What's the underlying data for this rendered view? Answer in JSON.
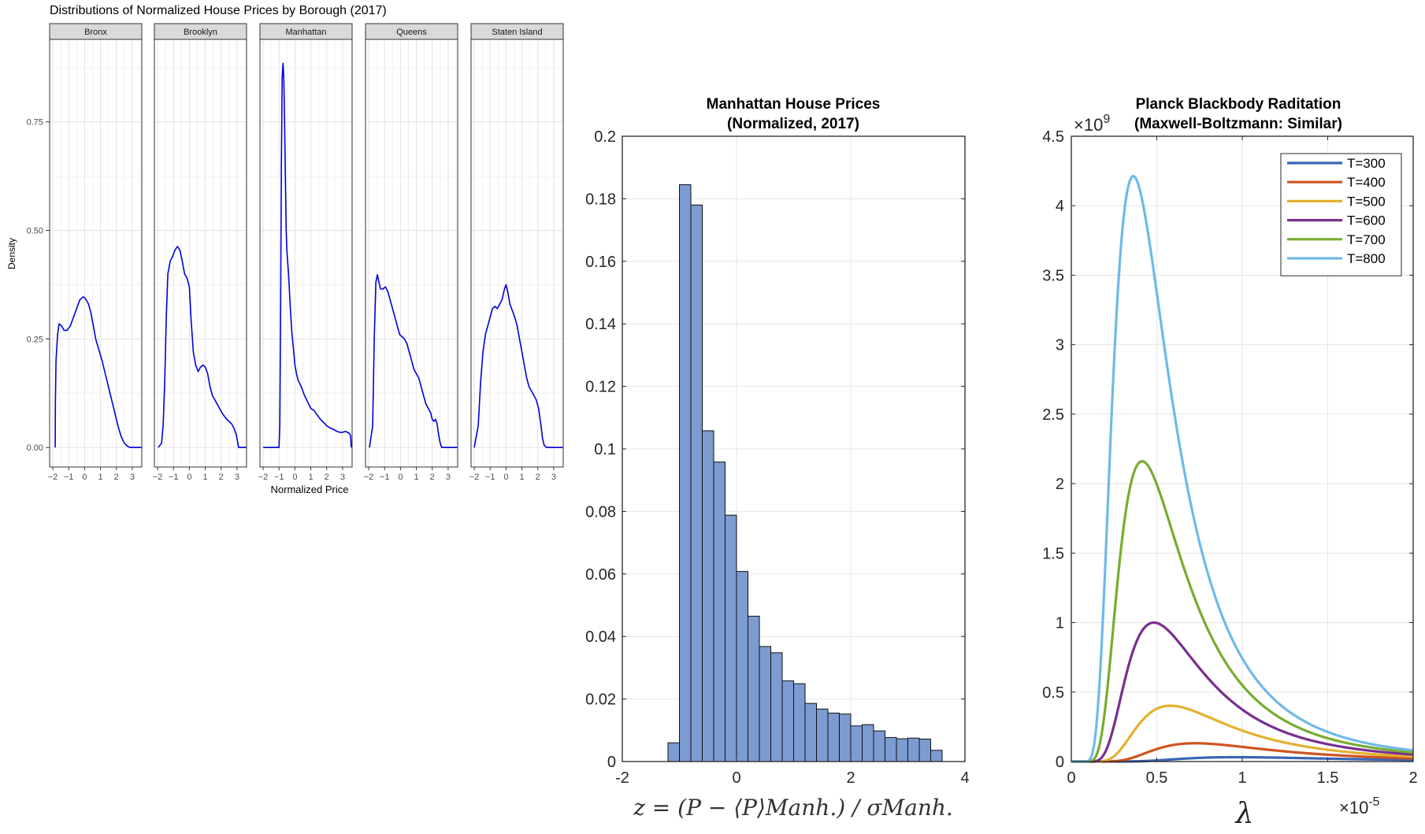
{
  "chart_data": [
    {
      "type": "line",
      "title": "Distributions of Normalized House Prices by Borough (2017)",
      "xlabel": "Normalized Price",
      "ylabel": "Density",
      "xlim": [
        -2.2,
        3.6
      ],
      "ylim": [
        -0.045,
        0.94
      ],
      "xticks": [
        -2,
        -1,
        0,
        1,
        2,
        3
      ],
      "xtick_labels": [
        "−2",
        "−1",
        "0",
        "1",
        "2",
        "3"
      ],
      "yticks": [
        0.0,
        0.25,
        0.5,
        0.75
      ],
      "ytick_labels": [
        "0.00",
        "0.25",
        "0.50",
        "0.75"
      ],
      "grid": true,
      "line_color": "#0000dd",
      "facets": [
        {
          "name": "Bronx",
          "x": [
            -1.85,
            -1.84,
            -1.8,
            -1.7,
            -1.6,
            -1.45,
            -1.3,
            -1.1,
            -0.9,
            -0.7,
            -0.5,
            -0.3,
            -0.1,
            0.0,
            0.1,
            0.25,
            0.4,
            0.55,
            0.7,
            0.9,
            1.1,
            1.3,
            1.5,
            1.7,
            1.9,
            2.1,
            2.3,
            2.5,
            2.7,
            2.8,
            2.85,
            3.6
          ],
          "y": [
            0.0,
            0.1,
            0.2,
            0.26,
            0.285,
            0.28,
            0.27,
            0.27,
            0.28,
            0.3,
            0.32,
            0.34,
            0.347,
            0.345,
            0.34,
            0.33,
            0.31,
            0.28,
            0.25,
            0.225,
            0.2,
            0.17,
            0.14,
            0.11,
            0.08,
            0.05,
            0.025,
            0.01,
            0.003,
            0.001,
            0.0,
            0.0
          ]
        },
        {
          "name": "Brooklyn",
          "x": [
            -1.95,
            -1.75,
            -1.65,
            -1.55,
            -1.45,
            -1.35,
            -1.2,
            -1.05,
            -0.9,
            -0.75,
            -0.6,
            -0.45,
            -0.3,
            -0.15,
            0.0,
            0.1,
            0.25,
            0.4,
            0.55,
            0.7,
            0.85,
            1.0,
            1.15,
            1.3,
            1.45,
            1.6,
            1.75,
            1.9,
            2.05,
            2.2,
            2.35,
            2.5,
            2.65,
            2.8,
            2.95,
            3.1,
            3.6
          ],
          "y": [
            0.0,
            0.01,
            0.05,
            0.15,
            0.3,
            0.4,
            0.43,
            0.44,
            0.455,
            0.463,
            0.455,
            0.43,
            0.4,
            0.39,
            0.37,
            0.3,
            0.22,
            0.19,
            0.175,
            0.185,
            0.19,
            0.185,
            0.17,
            0.14,
            0.12,
            0.11,
            0.1,
            0.09,
            0.08,
            0.072,
            0.065,
            0.06,
            0.055,
            0.045,
            0.03,
            0.0,
            0.0
          ]
        },
        {
          "name": "Manhattan",
          "x": [
            -2.0,
            -1.0,
            -0.95,
            -0.9,
            -0.85,
            -0.8,
            -0.75,
            -0.7,
            -0.65,
            -0.6,
            -0.55,
            -0.5,
            -0.4,
            -0.3,
            -0.2,
            -0.1,
            0.0,
            0.1,
            0.2,
            0.4,
            0.6,
            0.8,
            1.0,
            1.2,
            1.4,
            1.6,
            1.8,
            2.0,
            2.2,
            2.4,
            2.6,
            2.8,
            3.0,
            3.2,
            3.4,
            3.5,
            3.55
          ],
          "y": [
            0.0,
            0.0,
            0.05,
            0.3,
            0.65,
            0.85,
            0.885,
            0.85,
            0.75,
            0.62,
            0.5,
            0.45,
            0.4,
            0.33,
            0.27,
            0.23,
            0.19,
            0.17,
            0.155,
            0.14,
            0.12,
            0.105,
            0.09,
            0.085,
            0.075,
            0.065,
            0.058,
            0.05,
            0.045,
            0.042,
            0.038,
            0.035,
            0.035,
            0.037,
            0.033,
            0.028,
            0.0
          ]
        },
        {
          "name": "Queens",
          "x": [
            -1.95,
            -1.75,
            -1.65,
            -1.55,
            -1.45,
            -1.35,
            -1.25,
            -1.1,
            -0.95,
            -0.8,
            -0.65,
            -0.5,
            -0.35,
            -0.2,
            -0.05,
            0.1,
            0.25,
            0.4,
            0.55,
            0.7,
            0.85,
            1.0,
            1.15,
            1.3,
            1.45,
            1.6,
            1.75,
            1.9,
            2.0,
            2.1,
            2.2,
            2.3,
            2.4,
            2.5,
            2.6,
            3.6
          ],
          "y": [
            0.0,
            0.05,
            0.25,
            0.38,
            0.398,
            0.38,
            0.365,
            0.365,
            0.37,
            0.36,
            0.34,
            0.32,
            0.3,
            0.28,
            0.26,
            0.255,
            0.25,
            0.24,
            0.22,
            0.2,
            0.18,
            0.17,
            0.16,
            0.14,
            0.12,
            0.1,
            0.09,
            0.08,
            0.065,
            0.06,
            0.065,
            0.055,
            0.03,
            0.01,
            0.0,
            0.0
          ]
        },
        {
          "name": "Staten Island",
          "x": [
            -2.0,
            -1.75,
            -1.6,
            -1.45,
            -1.3,
            -1.15,
            -1.0,
            -0.85,
            -0.7,
            -0.55,
            -0.4,
            -0.25,
            -0.1,
            0.0,
            0.1,
            0.25,
            0.4,
            0.55,
            0.7,
            0.85,
            1.0,
            1.15,
            1.3,
            1.45,
            1.6,
            1.75,
            1.9,
            2.05,
            2.2,
            2.3,
            2.4,
            2.55,
            3.6
          ],
          "y": [
            0.0,
            0.05,
            0.15,
            0.22,
            0.26,
            0.28,
            0.3,
            0.32,
            0.325,
            0.32,
            0.33,
            0.34,
            0.365,
            0.375,
            0.36,
            0.33,
            0.315,
            0.3,
            0.28,
            0.25,
            0.22,
            0.19,
            0.16,
            0.14,
            0.13,
            0.12,
            0.11,
            0.09,
            0.05,
            0.02,
            0.005,
            0.0,
            0.0
          ]
        }
      ]
    },
    {
      "type": "bar",
      "title": "Manhattan House Prices",
      "subtitle": "(Normalized, 2017)",
      "xlabel": "z = (P − ⟨P⟩Manh.) / σManh.",
      "ylabel": "",
      "xlim": [
        -2,
        4
      ],
      "ylim": [
        0,
        0.2
      ],
      "xticks": [
        -2,
        0,
        2,
        4
      ],
      "xtick_labels": [
        "-2",
        "0",
        "2",
        "4"
      ],
      "yticks": [
        0,
        0.02,
        0.04,
        0.06,
        0.08,
        0.1,
        0.12,
        0.14,
        0.16,
        0.18,
        0.2
      ],
      "ytick_labels": [
        "0",
        "0.02",
        "0.04",
        "0.06",
        "0.08",
        "0.1",
        "0.12",
        "0.14",
        "0.16",
        "0.18",
        "0.2"
      ],
      "grid": true,
      "bar_color": "#7b9bd1",
      "bins": [
        [
          -1.2,
          -1.0
        ],
        [
          -1.0,
          -0.8
        ],
        [
          -0.8,
          -0.6
        ],
        [
          -0.6,
          -0.4
        ],
        [
          -0.4,
          -0.2
        ],
        [
          -0.2,
          0.0
        ],
        [
          0.0,
          0.2
        ],
        [
          0.2,
          0.4
        ],
        [
          0.4,
          0.6
        ],
        [
          0.6,
          0.8
        ],
        [
          0.8,
          1.0
        ],
        [
          1.0,
          1.2
        ],
        [
          1.2,
          1.4
        ],
        [
          1.4,
          1.6
        ],
        [
          1.6,
          1.8
        ],
        [
          1.8,
          2.0
        ],
        [
          2.0,
          2.2
        ],
        [
          2.2,
          2.4
        ],
        [
          2.4,
          2.6
        ],
        [
          2.6,
          2.8
        ],
        [
          2.8,
          3.0
        ],
        [
          3.0,
          3.2
        ],
        [
          3.2,
          3.4
        ],
        [
          3.4,
          3.6
        ]
      ],
      "values": [
        0.006,
        0.1845,
        0.178,
        0.1058,
        0.0958,
        0.0788,
        0.0608,
        0.0465,
        0.0368,
        0.0348,
        0.0258,
        0.0249,
        0.0186,
        0.0168,
        0.0155,
        0.0152,
        0.0114,
        0.0118,
        0.0098,
        0.0077,
        0.0073,
        0.0075,
        0.0072,
        0.0036
      ]
    },
    {
      "type": "line",
      "title": "Planck Blackbody Raditation",
      "subtitle": "(Maxwell-Boltzmann: Similar)",
      "xlabel": "λ",
      "ylabel": "",
      "x_exponent": "×10",
      "x_exponent_power": "-5",
      "y_exponent": "×10",
      "y_exponent_power": "9",
      "xlim": [
        0,
        2
      ],
      "ylim": [
        0,
        4.5
      ],
      "xticks": [
        0,
        0.5,
        1,
        1.5,
        2
      ],
      "xtick_labels": [
        "0",
        "0.5",
        "1",
        "1.5",
        "2"
      ],
      "yticks": [
        0,
        0.5,
        1,
        1.5,
        2,
        2.5,
        3,
        3.5,
        4,
        4.5
      ],
      "ytick_labels": [
        "0",
        "0.5",
        "1",
        "1.5",
        "2",
        "2.5",
        "3",
        "3.5",
        "4",
        "4.5"
      ],
      "grid": true,
      "legend_position": "top-right",
      "physics": {
        "h": 6.626e-34,
        "c": 300000000.0,
        "k": 1.381e-23,
        "x_scale": 1e-05,
        "y_scale": 1000000000.0
      },
      "series": [
        {
          "name": "T=300",
          "temperature": 300,
          "color": "#3a66b3"
        },
        {
          "name": "T=400",
          "temperature": 400,
          "color": "#cf5420"
        },
        {
          "name": "T=500",
          "temperature": 500,
          "color": "#e4b030"
        },
        {
          "name": "T=600",
          "temperature": 600,
          "color": "#7a2e8e"
        },
        {
          "name": "T=700",
          "temperature": 700,
          "color": "#77ac30"
        },
        {
          "name": "T=800",
          "temperature": 800,
          "color": "#6fb9e8"
        }
      ]
    }
  ]
}
